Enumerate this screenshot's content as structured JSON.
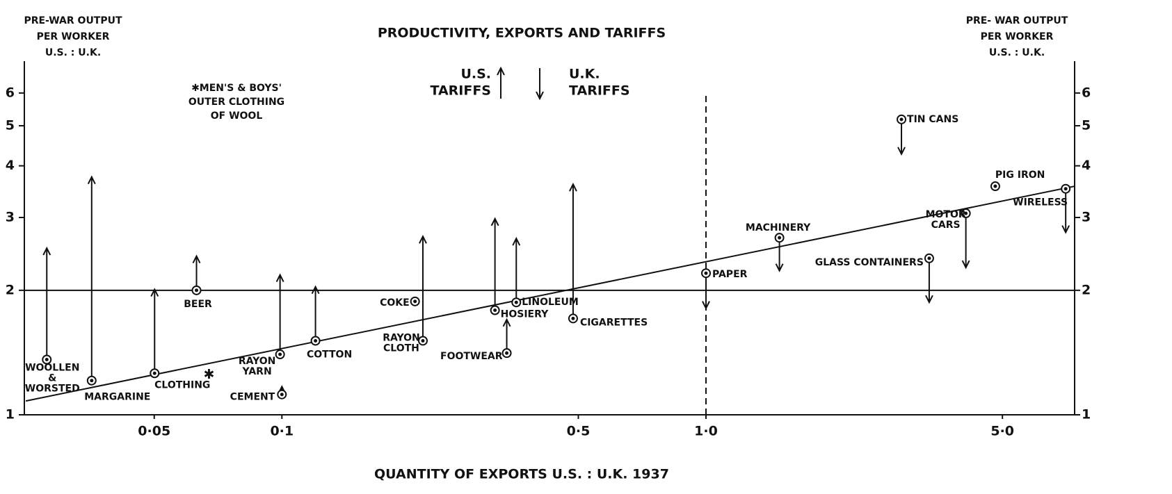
{
  "chart_data": {
    "type": "arrow-scatter",
    "title": "PRODUCTIVITY, EXPORTS AND TARIFFS",
    "y_label_left": [
      "PRE-WAR OUTPUT",
      "PER WORKER",
      "U.S. : U.K."
    ],
    "y_label_right": [
      "PRE- WAR OUTPUT",
      "PER WORKER",
      "U.S. : U.K."
    ],
    "x_label": "QUANTITY OF EXPORTS U.S. : U.K. 1937",
    "xscale": "log",
    "yscale": "log",
    "xlim": [
      0.0247,
      7.4
    ],
    "ylim": [
      1,
      7
    ],
    "xticks": [
      {
        "value": 0.05,
        "label": "0·05"
      },
      {
        "value": 0.1,
        "label": "0·1"
      },
      {
        "value": 0.5,
        "label": "0·5"
      },
      {
        "value": 1.0,
        "label": "1·0"
      },
      {
        "value": 5.0,
        "label": "5·0"
      }
    ],
    "yticks": [
      1,
      2,
      3,
      4,
      5,
      6
    ],
    "hline": 2,
    "vline": 1.0,
    "trend_line": {
      "x": [
        0.0249,
        7.4
      ],
      "y": [
        1.08,
        3.57
      ]
    },
    "legend": {
      "up": [
        "U.S.",
        "TARIFFS"
      ],
      "down": [
        "U.K.",
        "TARIFFS"
      ]
    },
    "note": [
      "✱MEN'S & BOYS'",
      "OUTER CLOTHING",
      "OF WOOL"
    ],
    "note_point": {
      "label": "✱",
      "x": 0.0673,
      "y": 1.25
    },
    "points": [
      {
        "label": [
          "WOOLLEN",
          "&",
          "WORSTED"
        ],
        "x": 0.0279,
        "y": 1.36,
        "tariff": 2.53
      },
      {
        "label": [
          "MARGARINE"
        ],
        "x": 0.0356,
        "y": 1.21,
        "tariff": 3.76
      },
      {
        "label": [
          "CLOTHING"
        ],
        "x": 0.0501,
        "y": 1.26,
        "tariff": 2.01
      },
      {
        "label": [
          "BEER"
        ],
        "x": 0.0629,
        "y": 2.0,
        "tariff": 2.42
      },
      {
        "label": [
          "CEMENT"
        ],
        "x": 0.1,
        "y": 1.12,
        "tariff": 1.17
      },
      {
        "label": [
          "RAYON",
          "YARN"
        ],
        "x": 0.099,
        "y": 1.4,
        "tariff": 2.18
      },
      {
        "label": [
          "COTTON"
        ],
        "x": 0.12,
        "y": 1.51,
        "tariff": 2.04
      },
      {
        "label": [
          "COKE"
        ],
        "x": 0.206,
        "y": 1.88
      },
      {
        "label": [
          "RAYON",
          "CLOTH"
        ],
        "x": 0.215,
        "y": 1.51,
        "tariff": 2.7
      },
      {
        "label": [
          "HOSIERY"
        ],
        "x": 0.318,
        "y": 1.79,
        "tariff": 2.98
      },
      {
        "label": [
          "FOOTWEAR"
        ],
        "x": 0.339,
        "y": 1.41,
        "tariff": 1.7
      },
      {
        "label": [
          "LINOLEUM"
        ],
        "x": 0.357,
        "y": 1.87,
        "tariff": 2.67
      },
      {
        "label": [
          "CIGARETTES"
        ],
        "x": 0.486,
        "y": 1.71,
        "tariff": 3.61
      },
      {
        "label": [
          "PAPER"
        ],
        "x": 1.0,
        "y": 2.2,
        "tariff": 1.81
      },
      {
        "label": [
          "MACHINERY"
        ],
        "x": 1.49,
        "y": 2.68,
        "tariff": 2.23
      },
      {
        "label": [
          "TIN CANS"
        ],
        "x": 2.89,
        "y": 5.18,
        "tariff": 4.27
      },
      {
        "label": [
          "GLASS CONTAINERS"
        ],
        "x": 3.36,
        "y": 2.39,
        "tariff": 1.87
      },
      {
        "label": [
          "MOTOR",
          "CARS"
        ],
        "x": 4.1,
        "y": 3.07,
        "tariff": 2.27
      },
      {
        "label": [
          "PIG IRON"
        ],
        "x": 4.81,
        "y": 3.57
      },
      {
        "label": [
          "WIRELESS"
        ],
        "x": 7.05,
        "y": 3.52,
        "tariff": 2.76
      }
    ]
  }
}
